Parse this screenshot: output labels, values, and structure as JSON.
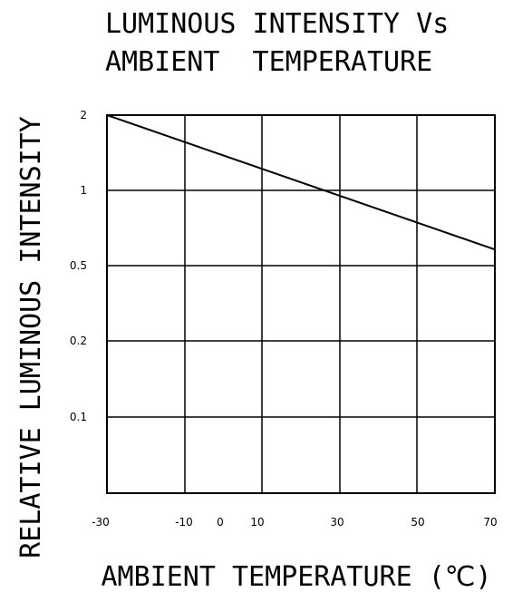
{
  "chart_data": {
    "type": "line",
    "title_lines": [
      "LUMINOUS INTENSITY Vs",
      "AMBIENT  TEMPERATURE"
    ],
    "xlabel": "AMBIENT TEMPERATURE (℃)",
    "ylabel": "RELATIVE LUMINOUS INTENSITY",
    "x_range": [
      -30,
      70
    ],
    "y_scale": "log",
    "y_ticks": [
      {
        "value": 2,
        "label": "2"
      },
      {
        "value": 1,
        "label": "1"
      },
      {
        "value": 0.5,
        "label": "0.5"
      },
      {
        "value": 0.2,
        "label": "0.2"
      },
      {
        "value": 0.1,
        "label": "0.1"
      }
    ],
    "x_ticks": [
      {
        "value": -30,
        "label": "-30"
      },
      {
        "value": -10,
        "label": "-10"
      },
      {
        "value": 0,
        "label": "0"
      },
      {
        "value": 10,
        "label": "10"
      },
      {
        "value": 30,
        "label": "30"
      },
      {
        "value": 50,
        "label": "50"
      },
      {
        "value": 70,
        "label": "70"
      }
    ],
    "series": [
      {
        "x": [
          -30,
          70
        ],
        "y": [
          2,
          0.58
        ]
      }
    ],
    "grid": true,
    "line_color": "#000000"
  }
}
